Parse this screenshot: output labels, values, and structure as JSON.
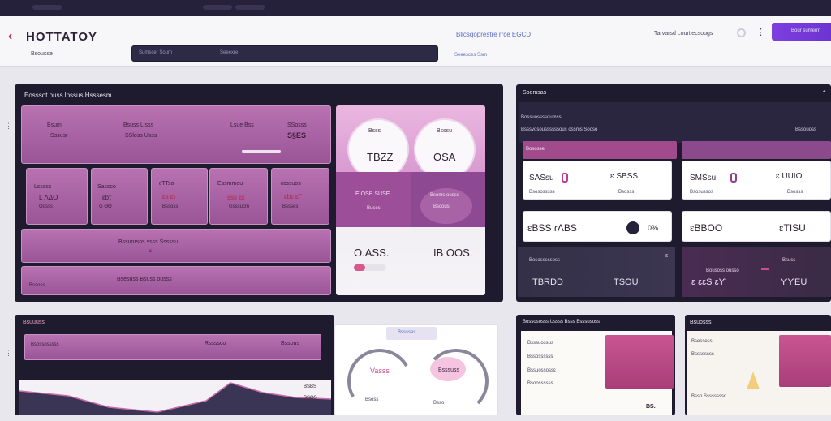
{
  "header": {
    "back": "‹",
    "brand": "HOTTATOY",
    "crumb": "Bsousse",
    "search_left": "Sumscer Soum",
    "search_right": "Seeexre",
    "link_main": "Bllcsqoprestre rrce EGCD",
    "link_sub": "Seeesces Ssm",
    "user": "Tarvarsd Lourtlecsougs",
    "more": "⋮",
    "cta": "Bour sumerm"
  },
  "main_panel": {
    "title": "Eosssot ouss lossus Hsssesm",
    "side_mark": "⋮",
    "row1": [
      {
        "label": "Bsum",
        "value": "Sssusr"
      },
      {
        "label": "Bsuss Lisss",
        "value": "SSloss Usss"
      },
      {
        "label": "Lsue Bss",
        "value": ""
      },
      {
        "label": "SSosss",
        "value": "S§ES"
      }
    ],
    "row2": [
      {
        "label": "Lsssss",
        "value": "L ΛΔO",
        "sub": "Oosss"
      },
      {
        "label": "Sassco",
        "value": "ԑbτ",
        "sub": "G ΘΘ"
      },
      {
        "label": "ɛTTso",
        "value": "ɛs ɛτ",
        "sub": "Bssoss"
      },
      {
        "label": "Essmmou",
        "value": "sss ɛɛ",
        "sub": "Gsssucm"
      },
      {
        "label": "ɛɛssuos",
        "value": "ɛbɛ ɛΓ",
        "sub": "Bssses"
      }
    ],
    "wide1_label": "Bssuorsos ssss Sssssu",
    "wide1_sub": "ɛ",
    "wide2_label": "Bssoss",
    "wide2_value": "Bsesuss Bsuss ousss"
  },
  "metrics": {
    "k1_label": "Bsss",
    "k1_value": "TBZZ",
    "k2_label": "Bsssu",
    "k2_value": "OSA",
    "band_label": "E OSB SUSE",
    "band_sub": "Buses",
    "band2_label": "Bsoms ousss",
    "band2_sub": "Bscous",
    "foot1": "O.ASS.",
    "foot2": "IB OOS."
  },
  "stats_panel": {
    "title": "Soomsas",
    "arrow": "⌃",
    "sub1": "Bossuossssoumss",
    "sub2": "Bsssvosoussssssous ossms Sooso",
    "sub2_right": "Bssouoss",
    "pink_left": "Bososse",
    "cards": [
      {
        "big": "SASsu",
        "mid": "0",
        "val": "ɛ SBSS",
        "sub": "Bsososssss",
        "sub2": "Bsosss"
      },
      {
        "big": "SMSsu",
        "mid": "0",
        "val": "ɛ UUIO",
        "sub": "Bsosussos",
        "sub2": "Bsosss"
      }
    ],
    "wide_cards": [
      {
        "left": "ɛBSS ɾΛBS",
        "right": "0%"
      },
      {
        "left": "ɛBBOO",
        "right": "ɛTISU"
      }
    ],
    "dark_cards": [
      {
        "label": "Bososssssoss",
        "mark": "ɛ",
        "left": "TBRDD",
        "right": "ƬSOU"
      },
      {
        "label": "Bousoss ousso",
        "mark": "Bsuss",
        "left": "ɛ ɛɛS ɛƳ",
        "right": "ƳƳEU"
      }
    ]
  },
  "bottom_left": {
    "title": "Bsuuuss",
    "bar_label": "Bsossosssss",
    "bar_mid": "Rssssco",
    "bar_right": "Bssous",
    "chart_label": "BSBS",
    "chart_sub": "BSOS"
  },
  "bottom_mid": {
    "tag": "Bsssses",
    "gauge1": "Vasss",
    "gauge1_sub": "Bsoss",
    "gauge2": "Bsssuss",
    "gauge2_sub": "Bsso"
  },
  "bottom_right": {
    "panel1_title": "Bossososss Ussss Bsss Bsssusoss",
    "panel1_rows": [
      "Bsssuossus",
      "Bssossssss",
      "Bssuossossɛ",
      "Bsoossssss"
    ],
    "panel1_foot": "BS.",
    "panel2_title": "Bsuosss",
    "panel2_rows": [
      "Bsessess",
      "Bssssssss"
    ],
    "panel2_foot": "Bsso Ssssssssd"
  }
}
